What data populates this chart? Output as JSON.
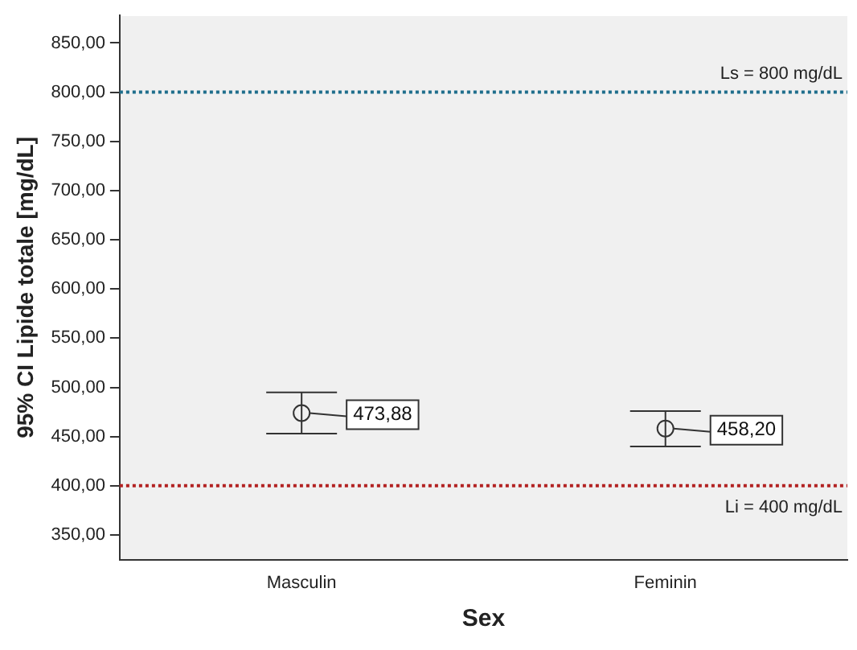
{
  "chart_data": {
    "type": "scatter",
    "xlabel": "Sex",
    "ylabel": "95% CI Lipide totale [mg/dL]",
    "categories": [
      "Masculin",
      "Feminin"
    ],
    "values": [
      473.88,
      458.2
    ],
    "errors": [
      [
        453,
        495
      ],
      [
        440,
        476
      ]
    ],
    "value_labels": [
      "473,88",
      "458,20"
    ],
    "color": "#333333",
    "marker": "circle",
    "legend": false,
    "grid": false,
    "ylim": [
      325,
      878
    ],
    "yticks": [
      {
        "value": 350,
        "label": "350,00"
      },
      {
        "value": 400,
        "label": "400,00"
      },
      {
        "value": 450,
        "label": "450,00"
      },
      {
        "value": 500,
        "label": "500,00"
      },
      {
        "value": 550,
        "label": "550,00"
      },
      {
        "value": 600,
        "label": "600,00"
      },
      {
        "value": 650,
        "label": "650,00"
      },
      {
        "value": 700,
        "label": "700,00"
      },
      {
        "value": 750,
        "label": "750,00"
      },
      {
        "value": 800,
        "label": "800,00"
      },
      {
        "value": 850,
        "label": "850,00"
      }
    ],
    "ref_lines": [
      {
        "axis": "y",
        "value": 800,
        "label": "Ls = 800 mg/dL",
        "color": "#1f6e8c",
        "line_style": "dotted"
      },
      {
        "axis": "y",
        "value": 400,
        "label": "Li = 400 mg/dL",
        "color": "#b22222",
        "line_style": "dotted"
      }
    ]
  }
}
